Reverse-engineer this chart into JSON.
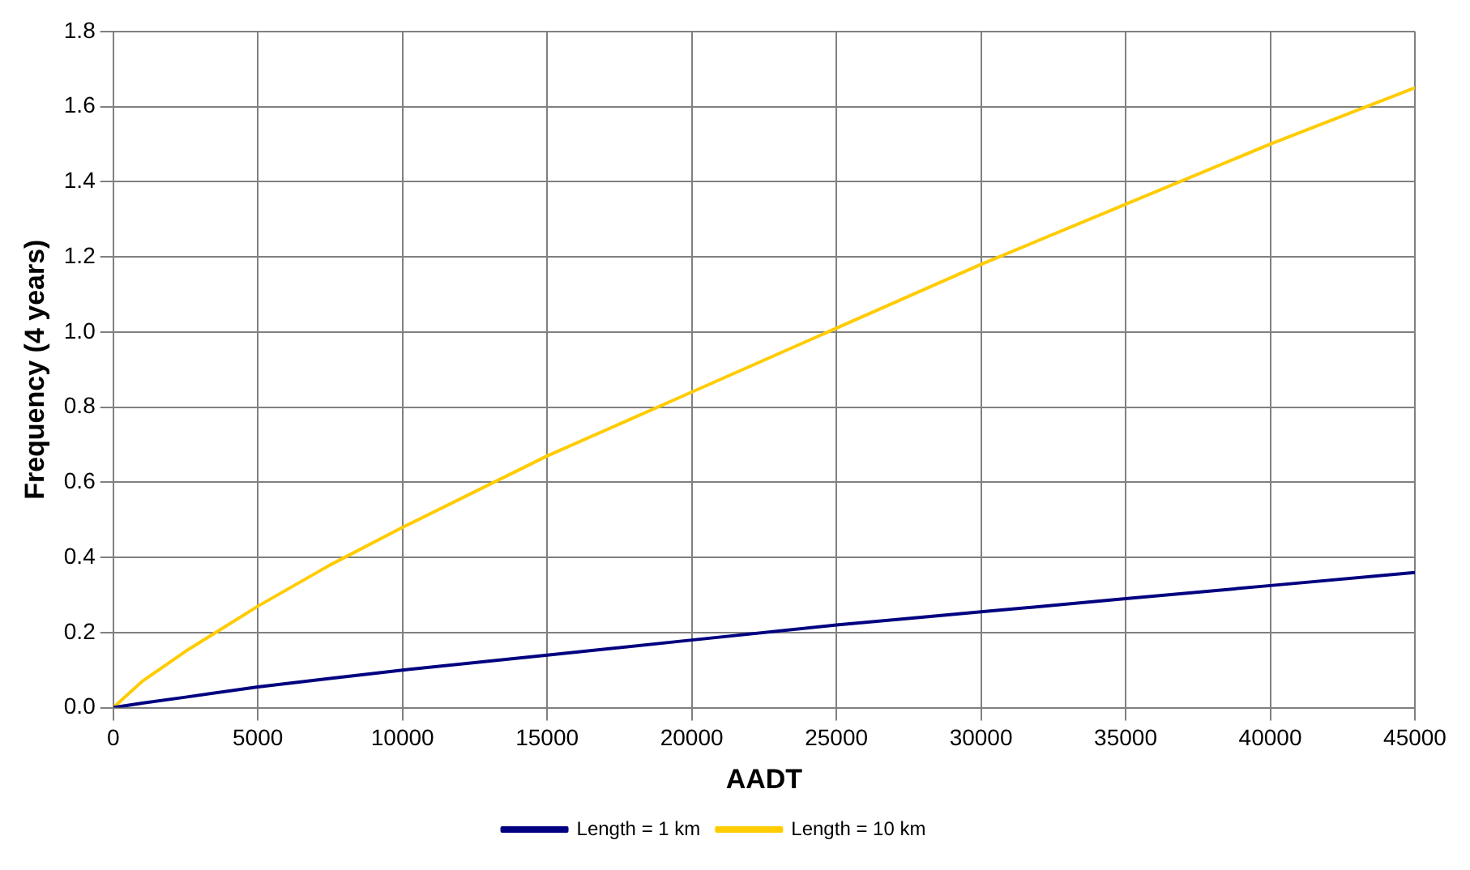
{
  "chart_data": {
    "type": "line",
    "xlabel": "AADT",
    "ylabel": "Frequency (4 years)",
    "x": [
      0,
      1000,
      2500,
      5000,
      7500,
      10000,
      15000,
      20000,
      25000,
      30000,
      35000,
      40000,
      45000
    ],
    "series": [
      {
        "name": "Length = 1 km",
        "color": "#000080",
        "values": [
          0,
          0.012,
          0.028,
          0.055,
          0.078,
          0.1,
          0.14,
          0.18,
          0.22,
          0.255,
          0.29,
          0.325,
          0.36
        ]
      },
      {
        "name": "Length = 10 km",
        "color": "#ffcc00",
        "values": [
          0,
          0.07,
          0.15,
          0.27,
          0.38,
          0.48,
          0.67,
          0.84,
          1.01,
          1.18,
          1.34,
          1.5,
          1.65
        ]
      }
    ],
    "xlim": [
      0,
      45000
    ],
    "xticks": [
      0,
      5000,
      10000,
      15000,
      20000,
      25000,
      30000,
      35000,
      40000,
      45000
    ],
    "ylim": [
      0,
      1.8
    ],
    "yticks": [
      {
        "value": 0,
        "label": "0.0"
      },
      {
        "value": 0.2,
        "label": "0.2"
      },
      {
        "value": 0.4,
        "label": "0.4"
      },
      {
        "value": 0.6,
        "label": "0.6"
      },
      {
        "value": 0.8,
        "label": "0.8"
      },
      {
        "value": 1,
        "label": "1.0"
      },
      {
        "value": 1.2,
        "label": "1.2"
      },
      {
        "value": 1.4,
        "label": "1.4"
      },
      {
        "value": 1.6,
        "label": "1.6"
      },
      {
        "value": 1.8,
        "label": "1.8"
      }
    ],
    "grid": true,
    "legend": "bottom",
    "marker": "none",
    "line_style": "solid"
  }
}
